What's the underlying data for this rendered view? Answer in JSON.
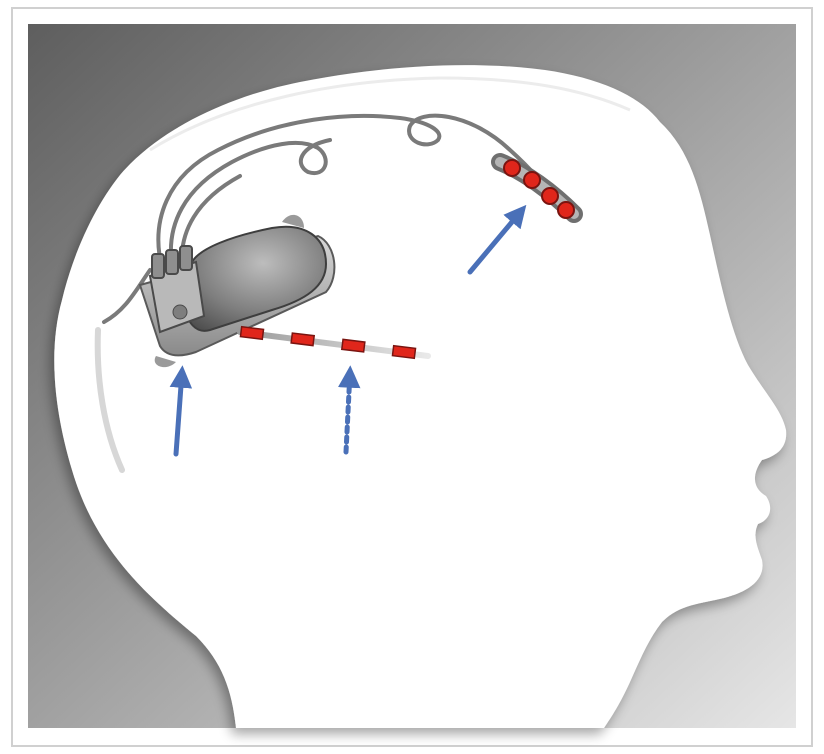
{
  "figure": {
    "title": "",
    "colors": {
      "background_dark": "#6f6f6f",
      "background_light": "#dcdcdc",
      "silhouette": "#ffffff",
      "device_body": "#8c8c8c",
      "device_dark": "#4a4a4a",
      "lead_wire": "#7a7a7a",
      "electrode_red": "#e0261b",
      "electrode_outline": "#7a1410",
      "arrow_blue": "#4a70b8"
    },
    "icons": {
      "head": "head-silhouette-icon",
      "neurostimulator": "neurostimulator-device-icon",
      "cortical_lead": "cortical-strip-lead-icon",
      "depth_lead": "depth-lead-icon",
      "arrow": "arrow-icon"
    },
    "callouts": [
      {
        "target": "neurostimulator",
        "style": "solid"
      },
      {
        "target": "cortical-strip-lead",
        "style": "solid"
      },
      {
        "target": "depth-lead",
        "style": "dotted"
      }
    ],
    "cortical_contacts": 4,
    "depth_contacts": 4
  }
}
